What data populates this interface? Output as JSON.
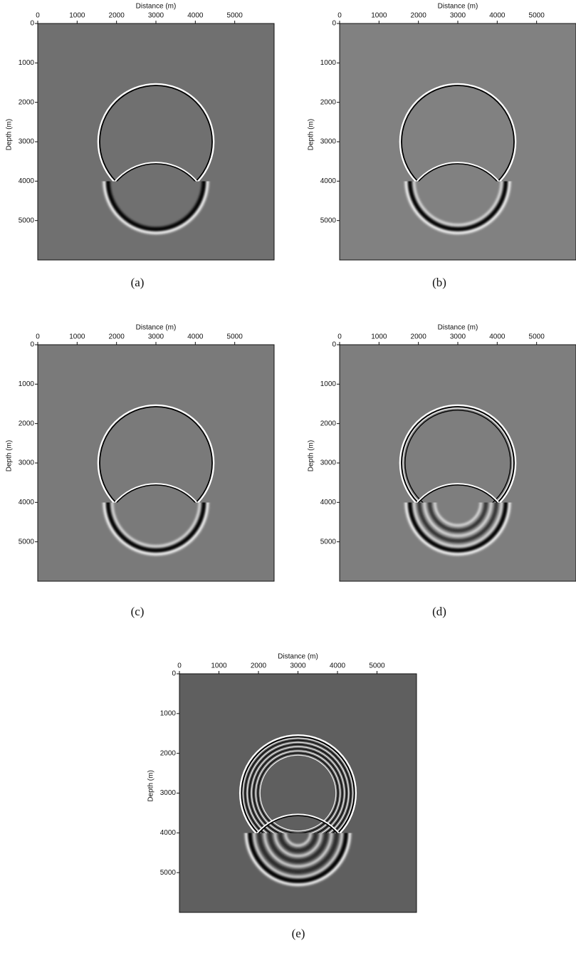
{
  "panels": [
    {
      "caption": "(a)",
      "x_label": "Distance (m)",
      "y_label": "Depth (m)",
      "xlim": [
        0,
        6000
      ],
      "ylim": [
        0,
        6000
      ],
      "xticks": [
        0,
        1000,
        2000,
        3000,
        4000,
        5000
      ],
      "yticks": [
        0,
        1000,
        2000,
        3000,
        4000,
        5000
      ]
    },
    {
      "caption": "(b)",
      "x_label": "Distance (m)",
      "y_label": "Depth (m)",
      "xlim": [
        0,
        6000
      ],
      "ylim": [
        0,
        6000
      ],
      "xticks": [
        0,
        1000,
        2000,
        3000,
        4000,
        5000
      ],
      "yticks": [
        0,
        1000,
        2000,
        3000,
        4000,
        5000
      ]
    },
    {
      "caption": "(c)",
      "x_label": "Distance (m)",
      "y_label": "Depth (m)",
      "xlim": [
        0,
        6000
      ],
      "ylim": [
        0,
        6000
      ],
      "xticks": [
        0,
        1000,
        2000,
        3000,
        4000,
        5000
      ],
      "yticks": [
        0,
        1000,
        2000,
        3000,
        4000,
        5000
      ]
    },
    {
      "caption": "(d)",
      "x_label": "Distance (m)",
      "y_label": "Depth (m)",
      "xlim": [
        0,
        6000
      ],
      "ylim": [
        0,
        6000
      ],
      "xticks": [
        0,
        1000,
        2000,
        3000,
        4000,
        5000
      ],
      "yticks": [
        0,
        1000,
        2000,
        3000,
        4000,
        5000
      ]
    },
    {
      "caption": "(e)",
      "x_label": "Distance (m)",
      "y_label": "Depth (m)",
      "xlim": [
        0,
        6000
      ],
      "ylim": [
        0,
        6000
      ],
      "xticks": [
        0,
        1000,
        2000,
        3000,
        4000,
        5000
      ],
      "yticks": [
        0,
        1000,
        2000,
        3000,
        4000,
        5000
      ]
    }
  ]
}
